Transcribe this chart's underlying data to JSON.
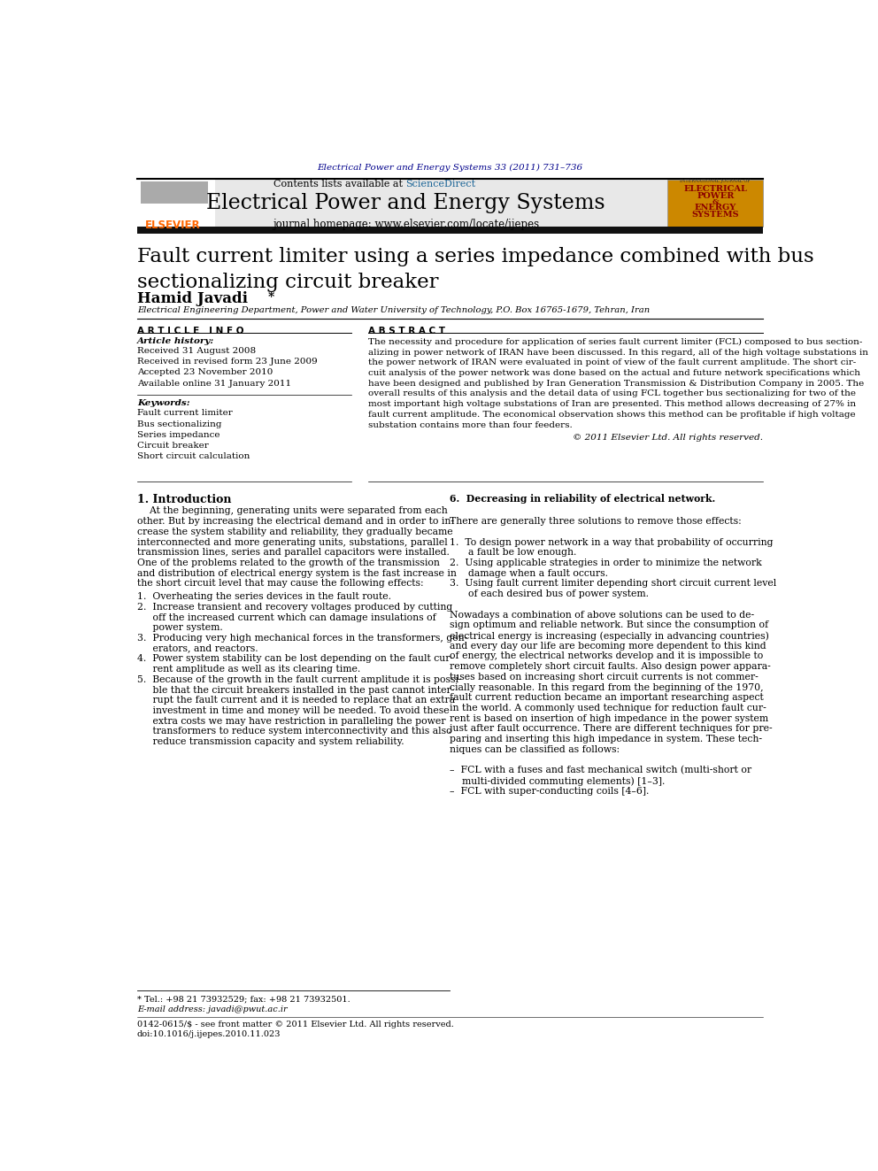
{
  "page_width": 9.92,
  "page_height": 13.23,
  "bg_color": "#ffffff",
  "top_journal_ref": "Electrical Power and Energy Systems 33 (2011) 731–736",
  "top_ref_color": "#00008B",
  "header_bg": "#e8e8e8",
  "header_title": "Electrical Power and Energy Systems",
  "header_subtitle": "journal homepage: www.elsevier.com/locate/ijepes",
  "header_contents": "Contents lists available at",
  "header_sciencedirect": "ScienceDirect",
  "sciencedirect_color": "#1a6496",
  "elsevier_color": "#FF6600",
  "article_title": "Fault current limiter using a series impedance combined with bus\nsectionalizing circuit breaker",
  "author": "Hamid Javadi",
  "author_star": "*",
  "affiliation": "Electrical Engineering Department, Power and Water University of Technology, P.O. Box 16765-1679, Tehran, Iran",
  "article_info_label": "A R T I C L E   I N F O",
  "abstract_label": "A B S T R A C T",
  "article_history_label": "Article history:",
  "received1": "Received 31 August 2008",
  "received2": "Received in revised form 23 June 2009",
  "accepted": "Accepted 23 November 2010",
  "available": "Available online 31 January 2011",
  "keywords_label": "Keywords:",
  "keywords": [
    "Fault current limiter",
    "Bus sectionalizing",
    "Series impedance",
    "Circuit breaker",
    "Short circuit calculation"
  ],
  "abstract_text": "The necessity and procedure for application of series fault current limiter (FCL) composed to bus section-alizing in power network of IRAN have been discussed. In this regard, all of the high voltage substations in the power network of IRAN were evaluated in point of view of the fault current amplitude. The short circuit analysis of the power network was done based on the actual and future network specifications which have been designed and published by Iran Generation Transmission & Distribution Company in 2005. The overall results of this analysis and the detail data of using FCL together bus sectionalizing for two of the most important high voltage substations of Iran are presented. This method allows decreasing of 27% in fault current amplitude. The economical observation shows this method can be profitable if high voltage substation contains more than four feeders.",
  "copyright": "© 2011 Elsevier Ltd. All rights reserved.",
  "intro_heading": "1. Introduction",
  "footnote_star": "* Tel.: +98 21 73932529; fax: +98 21 73932501.",
  "footnote_email": "E-mail address: javadi@pwut.ac.ir",
  "footer_text1": "0142-0615/$ - see front matter © 2011 Elsevier Ltd. All rights reserved.",
  "footer_text2": "doi:10.1016/j.ijepes.2010.11.023"
}
